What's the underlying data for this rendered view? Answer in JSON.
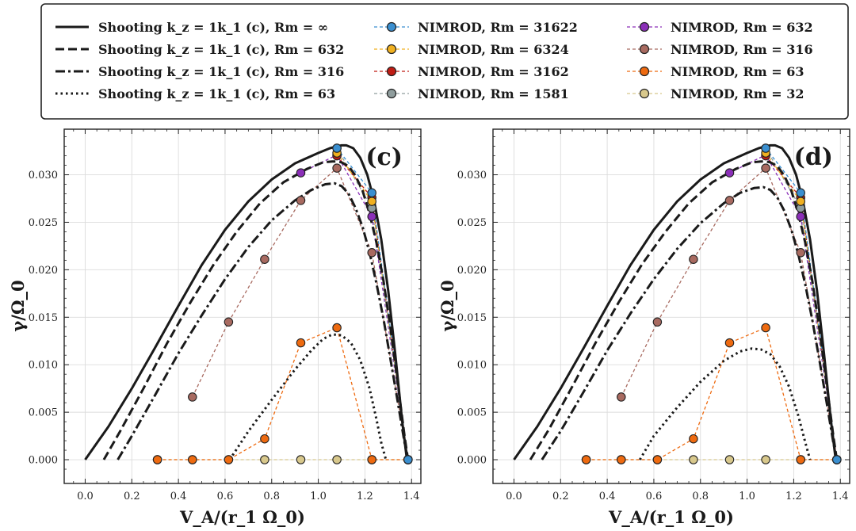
{
  "chart_data": {
    "type": "line",
    "x_label": "V_A/(r_1 Ω_0)",
    "y_label": "γ/Ω_0",
    "xlim": [
      -0.09,
      1.44
    ],
    "ylim": [
      -0.0025,
      0.0348
    ],
    "x_ticks": [
      0.0,
      0.2,
      0.4,
      0.6,
      0.8,
      1.0,
      1.2,
      1.4
    ],
    "x_tick_labels": [
      "0.0",
      "0.2",
      "0.4",
      "0.6",
      "0.8",
      "1.0",
      "1.2",
      "1.4"
    ],
    "y_ticks": [
      0.0,
      0.005,
      0.01,
      0.015,
      0.02,
      0.025,
      0.03
    ],
    "y_tick_labels": [
      "0.000",
      "0.005",
      "0.010",
      "0.015",
      "0.020",
      "0.025",
      "0.030"
    ],
    "legend": {
      "shooting": [
        {
          "label": "Shooting k_z = 1k_1 (c), Rm = ∞",
          "style": "solid"
        },
        {
          "label": "Shooting k_z = 1k_1 (c), Rm = 632",
          "style": "dashed"
        },
        {
          "label": "Shooting k_z = 1k_1 (c), Rm = 316",
          "style": "dashdot"
        },
        {
          "label": "Shooting k_z = 1k_1 (c), Rm = 63",
          "style": "dotted"
        }
      ],
      "nimrod": [
        {
          "label": "NIMROD, Rm = 31622",
          "color": "#3a8fd0"
        },
        {
          "label": "NIMROD, Rm = 6324",
          "color": "#f0b020"
        },
        {
          "label": "NIMROD, Rm = 3162",
          "color": "#c01c14"
        },
        {
          "label": "NIMROD, Rm = 1581",
          "color": "#8f9d9d"
        },
        {
          "label": "NIMROD, Rm = 632",
          "color": "#8b2fb8"
        },
        {
          "label": "NIMROD, Rm = 316",
          "color": "#a86a60"
        },
        {
          "label": "NIMROD, Rm = 63",
          "color": "#ee6a10"
        },
        {
          "label": "NIMROD, Rm = 32",
          "color": "#d8c88c"
        }
      ]
    },
    "panels": [
      {
        "label": "(c)",
        "shooting": [
          {
            "rm": "∞",
            "style": "solid",
            "x": [
              0.0,
              0.1,
              0.2,
              0.3,
              0.4,
              0.5,
              0.6,
              0.7,
              0.8,
              0.9,
              1.0,
              1.05,
              1.08,
              1.1,
              1.12,
              1.15,
              1.18,
              1.21,
              1.24,
              1.27,
              1.3,
              1.33,
              1.36,
              1.38
            ],
            "y": [
              0.0,
              0.0035,
              0.0075,
              0.0118,
              0.0162,
              0.0205,
              0.0242,
              0.0272,
              0.0295,
              0.0312,
              0.0323,
              0.0328,
              0.033,
              0.0331,
              0.0331,
              0.0328,
              0.0318,
              0.03,
              0.0272,
              0.0232,
              0.0178,
              0.0112,
              0.004,
              0.0
            ]
          },
          {
            "rm": "632",
            "style": "dashed",
            "x": [
              0.08,
              0.15,
              0.25,
              0.35,
              0.45,
              0.55,
              0.65,
              0.75,
              0.85,
              0.95,
              1.02,
              1.06,
              1.08,
              1.1,
              1.13,
              1.16,
              1.19,
              1.22,
              1.25,
              1.28,
              1.31,
              1.34,
              1.37,
              1.385
            ],
            "y": [
              0.0,
              0.003,
              0.0075,
              0.0122,
              0.0165,
              0.0205,
              0.024,
              0.027,
              0.0292,
              0.0306,
              0.0313,
              0.0314,
              0.0314,
              0.0313,
              0.0309,
              0.0299,
              0.0283,
              0.0259,
              0.0228,
              0.0188,
              0.0138,
              0.0082,
              0.0025,
              0.0
            ]
          },
          {
            "rm": "316",
            "style": "dashdot",
            "x": [
              0.14,
              0.2,
              0.3,
              0.4,
              0.5,
              0.6,
              0.7,
              0.8,
              0.9,
              0.97,
              1.03,
              1.07,
              1.1,
              1.13,
              1.16,
              1.19,
              1.22,
              1.25,
              1.28,
              1.31,
              1.34,
              1.37,
              1.385
            ],
            "y": [
              0.0,
              0.0025,
              0.0068,
              0.0112,
              0.0152,
              0.019,
              0.0224,
              0.0252,
              0.0273,
              0.0284,
              0.029,
              0.0291,
              0.0288,
              0.028,
              0.0265,
              0.0245,
              0.0218,
              0.0185,
              0.0148,
              0.0105,
              0.0062,
              0.0018,
              0.0
            ]
          },
          {
            "rm": "63",
            "style": "dotted",
            "x": [
              0.62,
              0.7,
              0.8,
              0.9,
              0.97,
              1.02,
              1.06,
              1.1,
              1.14,
              1.18,
              1.22,
              1.25,
              1.27,
              1.29
            ],
            "y": [
              0.0,
              0.003,
              0.0063,
              0.0095,
              0.0115,
              0.0127,
              0.0132,
              0.0131,
              0.0123,
              0.0105,
              0.0075,
              0.0042,
              0.0018,
              0.0
            ]
          }
        ],
        "nimrod": [
          {
            "rm": "31622",
            "color": "#3a8fd0",
            "x": [
              1.08,
              1.23,
              1.385
            ],
            "y": [
              0.0328,
              0.0281,
              0.0
            ]
          },
          {
            "rm": "6324",
            "color": "#f0b020",
            "x": [
              1.08,
              1.23,
              1.385
            ],
            "y": [
              0.0323,
              0.0272,
              0.0
            ]
          },
          {
            "rm": "3162",
            "color": "#c01c14",
            "x": [
              1.08,
              1.23,
              1.385
            ],
            "y": [
              0.032,
              0.0276,
              0.0
            ]
          },
          {
            "rm": "1581",
            "color": "#8f9d9d",
            "x": [
              1.08,
              1.23,
              1.385
            ],
            "y": [
              0.0328,
              0.0265,
              0.0
            ]
          },
          {
            "rm": "632",
            "color": "#8b2fb8",
            "x": [
              0.925,
              1.08,
              1.23,
              1.385
            ],
            "y": [
              0.0302,
              0.0321,
              0.0256,
              0.0
            ]
          },
          {
            "rm": "316",
            "color": "#a86a60",
            "x": [
              0.46,
              0.615,
              0.77,
              0.925,
              1.08,
              1.23,
              1.385
            ],
            "y": [
              0.0066,
              0.0145,
              0.0211,
              0.0273,
              0.0307,
              0.0218,
              0.0
            ]
          },
          {
            "rm": "63",
            "color": "#ee6a10",
            "x": [
              0.31,
              0.46,
              0.615,
              0.77,
              0.925,
              1.08,
              1.23,
              1.385
            ],
            "y": [
              0.0,
              0.0,
              0.0,
              0.0022,
              0.0123,
              0.0139,
              0.0,
              0.0
            ]
          },
          {
            "rm": "32",
            "color": "#d8c88c",
            "x": [
              0.31,
              0.46,
              0.615,
              0.77,
              0.925,
              1.08,
              1.23,
              1.385
            ],
            "y": [
              0.0,
              0.0,
              0.0,
              0.0,
              0.0,
              0.0,
              0.0,
              0.0
            ]
          }
        ]
      },
      {
        "label": "(d)",
        "shooting": [
          {
            "rm": "∞",
            "style": "solid",
            "x": [
              0.0,
              0.1,
              0.2,
              0.3,
              0.4,
              0.5,
              0.6,
              0.7,
              0.8,
              0.9,
              1.0,
              1.05,
              1.08,
              1.1,
              1.12,
              1.15,
              1.18,
              1.21,
              1.24,
              1.27,
              1.3,
              1.33,
              1.36,
              1.38
            ],
            "y": [
              0.0,
              0.0035,
              0.0075,
              0.0118,
              0.0162,
              0.0205,
              0.0242,
              0.0272,
              0.0295,
              0.0312,
              0.0323,
              0.0328,
              0.033,
              0.0331,
              0.0331,
              0.0328,
              0.0318,
              0.03,
              0.0272,
              0.0232,
              0.0178,
              0.0112,
              0.004,
              0.0
            ]
          },
          {
            "rm": "632",
            "style": "dashed",
            "x": [
              0.07,
              0.15,
              0.25,
              0.35,
              0.45,
              0.55,
              0.65,
              0.75,
              0.85,
              0.95,
              1.02,
              1.06,
              1.08,
              1.1,
              1.13,
              1.16,
              1.19,
              1.22,
              1.25,
              1.28,
              1.31,
              1.34,
              1.37,
              1.385
            ],
            "y": [
              0.0,
              0.0032,
              0.0077,
              0.0123,
              0.0166,
              0.0206,
              0.024,
              0.027,
              0.0292,
              0.0306,
              0.0313,
              0.0314,
              0.0314,
              0.0313,
              0.0309,
              0.0299,
              0.0283,
              0.0259,
              0.0228,
              0.0188,
              0.0138,
              0.0082,
              0.0025,
              0.0
            ]
          },
          {
            "rm": "316",
            "style": "dashdot",
            "x": [
              0.12,
              0.2,
              0.3,
              0.4,
              0.5,
              0.6,
              0.7,
              0.8,
              0.9,
              0.97,
              1.03,
              1.07,
              1.1,
              1.13,
              1.16,
              1.19,
              1.22,
              1.25,
              1.28,
              1.31,
              1.34,
              1.37,
              1.385
            ],
            "y": [
              0.0,
              0.003,
              0.0072,
              0.0115,
              0.0154,
              0.019,
              0.0222,
              0.0249,
              0.027,
              0.0281,
              0.0286,
              0.0287,
              0.0284,
              0.0276,
              0.0262,
              0.0242,
              0.0216,
              0.0184,
              0.0147,
              0.0105,
              0.0062,
              0.0018,
              0.0
            ]
          },
          {
            "rm": "63",
            "style": "dotted",
            "x": [
              0.54,
              0.6,
              0.7,
              0.8,
              0.9,
              0.97,
              1.02,
              1.06,
              1.1,
              1.14,
              1.18,
              1.22,
              1.25,
              1.27
            ],
            "y": [
              0.0,
              0.0025,
              0.0055,
              0.0082,
              0.0104,
              0.0114,
              0.0117,
              0.0116,
              0.0111,
              0.0098,
              0.0077,
              0.0046,
              0.0018,
              0.0
            ]
          }
        ],
        "nimrod": [
          {
            "rm": "31622",
            "color": "#3a8fd0",
            "x": [
              1.08,
              1.23,
              1.385
            ],
            "y": [
              0.0328,
              0.0281,
              0.0
            ]
          },
          {
            "rm": "6324",
            "color": "#f0b020",
            "x": [
              1.08,
              1.23,
              1.385
            ],
            "y": [
              0.0323,
              0.0272,
              0.0
            ]
          },
          {
            "rm": "3162",
            "color": "#c01c14",
            "x": [
              1.08,
              1.23,
              1.385
            ],
            "y": [
              0.032,
              0.0276,
              0.0
            ]
          },
          {
            "rm": "1581",
            "color": "#8f9d9d",
            "x": [
              1.08,
              1.23,
              1.385
            ],
            "y": [
              0.0328,
              0.0265,
              0.0
            ]
          },
          {
            "rm": "632",
            "color": "#8b2fb8",
            "x": [
              0.925,
              1.08,
              1.23,
              1.385
            ],
            "y": [
              0.0302,
              0.0321,
              0.0256,
              0.0
            ]
          },
          {
            "rm": "316",
            "color": "#a86a60",
            "x": [
              0.46,
              0.615,
              0.77,
              0.925,
              1.08,
              1.23,
              1.385
            ],
            "y": [
              0.0066,
              0.0145,
              0.0211,
              0.0273,
              0.0307,
              0.0218,
              0.0
            ]
          },
          {
            "rm": "63",
            "color": "#ee6a10",
            "x": [
              0.31,
              0.46,
              0.615,
              0.77,
              0.925,
              1.08,
              1.23,
              1.385
            ],
            "y": [
              0.0,
              0.0,
              0.0,
              0.0022,
              0.0123,
              0.0139,
              0.0,
              0.0
            ]
          },
          {
            "rm": "32",
            "color": "#d8c88c",
            "x": [
              0.31,
              0.46,
              0.615,
              0.77,
              0.925,
              1.08,
              1.23,
              1.385
            ],
            "y": [
              0.0,
              0.0,
              0.0,
              0.0,
              0.0,
              0.0,
              0.0,
              0.0
            ]
          }
        ]
      }
    ]
  }
}
